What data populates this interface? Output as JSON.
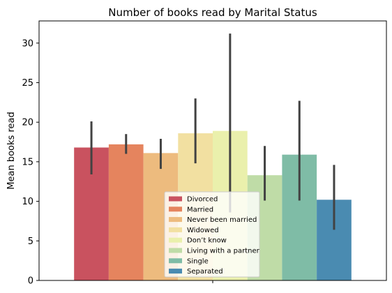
{
  "chart_data": {
    "type": "bar",
    "title": "Number of books read by Marital Status",
    "xlabel": "",
    "ylabel": "Mean books read",
    "ylim": [
      0,
      32.8
    ],
    "yticks": [
      0,
      5,
      10,
      15,
      20,
      25,
      30
    ],
    "grid": false,
    "legend_position": "lower center",
    "series": [
      {
        "name": "Divorced",
        "value": 16.8,
        "ci": [
          13.4,
          20.1
        ],
        "color": "#c9525f"
      },
      {
        "name": "Married",
        "value": 17.2,
        "ci": [
          16.0,
          18.5
        ],
        "color": "#e5845e"
      },
      {
        "name": "Never been married",
        "value": 16.1,
        "ci": [
          14.1,
          17.9
        ],
        "color": "#edbb7e"
      },
      {
        "name": "Widowed",
        "value": 18.6,
        "ci": [
          14.8,
          23.0
        ],
        "color": "#f2e0a1"
      },
      {
        "name": "Don’t know",
        "value": 18.9,
        "ci": [
          8.6,
          31.2
        ],
        "color": "#eaf0ac"
      },
      {
        "name": "Living with a partner",
        "value": 13.3,
        "ci": [
          10.1,
          17.0
        ],
        "color": "#bfdca7"
      },
      {
        "name": "Single",
        "value": 15.9,
        "ci": [
          10.1,
          22.7
        ],
        "color": "#7fbca6"
      },
      {
        "name": "Separated",
        "value": 10.2,
        "ci": [
          6.4,
          14.6
        ],
        "color": "#4a8bb1"
      }
    ]
  }
}
